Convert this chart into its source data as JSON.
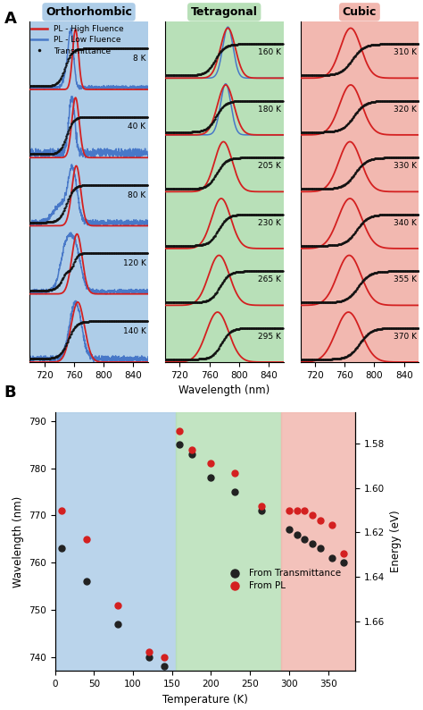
{
  "panel_A_label": "A",
  "panel_B_label": "B",
  "ortho_bg": "#aecde8",
  "tetra_bg": "#b8e0b8",
  "cubic_bg": "#f2b8b0",
  "ortho_label": "Orthorhombic",
  "tetra_label": "Tetragonal",
  "cubic_label": "Cubic",
  "legend_entries": [
    "PL - High Fluence",
    "PL - Low Fluence",
    "Transmittance"
  ],
  "color_high": "#d42020",
  "color_low": "#4878c8",
  "color_trans": "#111111",
  "ortho_temps": [
    "8 K",
    "40 K",
    "80 K",
    "120 K",
    "140 K"
  ],
  "tetra_temps": [
    "160 K",
    "180 K",
    "205 K",
    "230 K",
    "265 K",
    "295 K"
  ],
  "cubic_temps": [
    "310 K",
    "320 K",
    "330 K",
    "340 K",
    "355 K",
    "370 K"
  ],
  "scatter_T_black": [
    8,
    40,
    80,
    120,
    140,
    160,
    175,
    200,
    230,
    265,
    300,
    310,
    320,
    330,
    340,
    355,
    370
  ],
  "scatter_wl_black": [
    763,
    756,
    747,
    740,
    738,
    785,
    783,
    778,
    775,
    771,
    767,
    766,
    765,
    764,
    763,
    761,
    760
  ],
  "scatter_T_red": [
    8,
    40,
    80,
    120,
    140,
    160,
    175,
    200,
    230,
    265,
    300,
    310,
    320,
    330,
    340,
    355,
    370
  ],
  "scatter_wl_red": [
    771,
    765,
    751,
    741,
    740,
    788,
    784,
    781,
    779,
    772,
    771,
    771,
    771,
    770,
    769,
    768,
    762
  ],
  "scatter_black_color": "#222222",
  "scatter_red_color": "#d42020",
  "scatter_legend": [
    "From Transmittance",
    "From PL"
  ],
  "B_xlabel": "Temperature (K)",
  "B_ylabel_left": "Wavelength (nm)",
  "B_ylabel_right": "Energy (eV)",
  "B_yticks_wl": [
    740,
    750,
    760,
    770,
    780,
    790
  ],
  "B_yticks_eV": [
    1.58,
    1.6,
    1.62,
    1.64,
    1.66
  ],
  "ortho_boundary": 155,
  "cubic_boundary": 290
}
